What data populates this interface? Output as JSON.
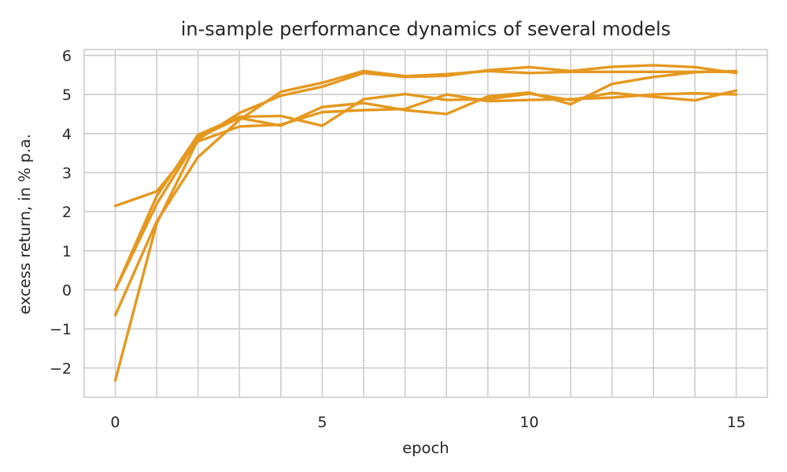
{
  "chart_data": {
    "type": "line",
    "title": "in-sample performance dynamics of several models",
    "xlabel": "epoch",
    "ylabel": "excess return, in % p.a.",
    "xlim": [
      -0.75,
      15.75
    ],
    "ylim": [
      -2.75,
      6.15
    ],
    "xticks": [
      0,
      5,
      10,
      15
    ],
    "xtick_labels": [
      "0",
      "5",
      "10",
      "15"
    ],
    "yticks": [
      -2,
      -1,
      0,
      1,
      2,
      3,
      4,
      5,
      6
    ],
    "ytick_labels": [
      "−2",
      "−1",
      "0",
      "1",
      "2",
      "3",
      "4",
      "5",
      "6"
    ],
    "x_gridlines": [
      0,
      1,
      2,
      3,
      4,
      5,
      6,
      7,
      8,
      9,
      10,
      11,
      12,
      13,
      14,
      15
    ],
    "grid": true,
    "line_color": "#e5981f",
    "x": [
      0,
      1,
      2,
      3,
      4,
      5,
      6,
      7,
      8,
      9,
      10,
      11,
      12,
      13,
      14,
      15
    ],
    "series": [
      {
        "values": [
          2.15,
          2.52,
          3.8,
          4.18,
          4.23,
          4.55,
          4.6,
          4.63,
          5.0,
          4.83,
          4.86,
          4.88,
          4.92,
          5.0,
          5.03,
          5.0
        ]
      },
      {
        "values": [
          0.0,
          2.4,
          3.97,
          4.43,
          4.45,
          4.2,
          4.88,
          5.01,
          4.86,
          4.88,
          5.02,
          4.86,
          5.04,
          4.94,
          4.85,
          5.1
        ]
      },
      {
        "values": [
          -0.65,
          1.75,
          3.4,
          4.35,
          5.07,
          5.3,
          5.6,
          5.47,
          5.52,
          5.6,
          5.55,
          5.58,
          5.58,
          5.58,
          5.58,
          5.58
        ]
      },
      {
        "values": [
          -2.32,
          1.7,
          3.85,
          4.53,
          4.97,
          5.2,
          5.55,
          5.45,
          5.48,
          5.62,
          5.7,
          5.6,
          5.71,
          5.75,
          5.7,
          5.55
        ]
      },
      {
        "values": [
          0.0,
          2.2,
          3.9,
          4.4,
          4.2,
          4.68,
          4.78,
          4.6,
          4.5,
          4.95,
          5.05,
          4.75,
          5.27,
          5.45,
          5.57,
          5.6
        ]
      }
    ]
  }
}
